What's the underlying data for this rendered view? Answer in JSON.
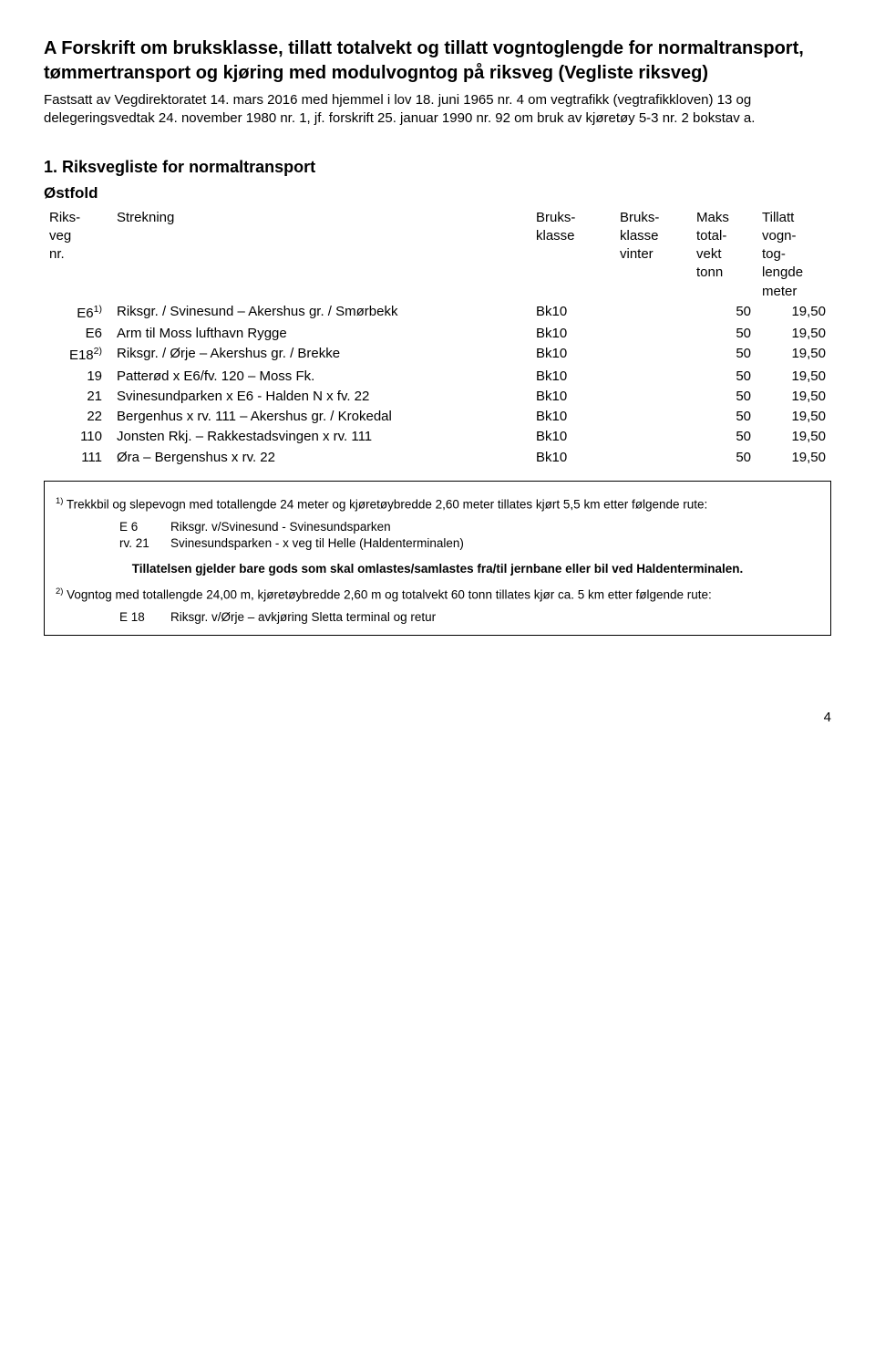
{
  "doc": {
    "title": "A    Forskrift om bruksklasse, tillatt totalvekt og tillatt vogntoglengde for normaltransport, tømmertransport og kjøring med modulvogntog på riksveg (Vegliste riksveg)",
    "subtitle": "Fastsatt av Vegdirektoratet 14. mars 2016 med hjemmel i lov 18. juni 1965 nr. 4 om vegtrafikk (vegtrafikkloven) 13 og delegeringsvedtak 24. november 1980 nr. 1, jf. forskrift 25. januar 1990 nr. 92 om bruk av kjøretøy 5-3 nr. 2 bokstav a.",
    "section_heading": "1.    Riksvegliste for normaltransport",
    "region": "Østfold",
    "page_number": "4"
  },
  "table": {
    "headers": {
      "col_nr": "Riks-\nveg\nnr.",
      "col_strek": "Strekning",
      "col_bk": "Bruks-\nklasse",
      "col_bkv": "Bruks-\nklasse\nvinter",
      "col_maks": "Maks\ntotal-\nvekt\ntonn",
      "col_till": "Tillatt\nvogn-\ntog-\nlengde\nmeter"
    },
    "rows": [
      {
        "nr": "E6",
        "sup": "1)",
        "strek": "Riksgr. / Svinesund – Akershus gr. / Smørbekk",
        "bk": "Bk10",
        "bkv": "",
        "maks": "50",
        "till": "19,50"
      },
      {
        "nr": "E6",
        "sup": "",
        "strek": "Arm til Moss lufthavn Rygge",
        "bk": "Bk10",
        "bkv": "",
        "maks": "50",
        "till": "19,50"
      },
      {
        "nr": "E18",
        "sup": "2)",
        "strek": "Riksgr. / Ørje – Akershus gr. / Brekke",
        "bk": "Bk10",
        "bkv": "",
        "maks": "50",
        "till": "19,50"
      },
      {
        "nr": "19",
        "sup": "",
        "strek": "Patterød x E6/fv. 120 – Moss Fk.",
        "bk": "Bk10",
        "bkv": "",
        "maks": "50",
        "till": "19,50"
      },
      {
        "nr": "21",
        "sup": "",
        "strek": "Svinesundparken x E6 - Halden N x fv. 22",
        "bk": "Bk10",
        "bkv": "",
        "maks": "50",
        "till": "19,50"
      },
      {
        "nr": "22",
        "sup": "",
        "strek": "Bergenhus x rv. 111 – Akershus gr. / Krokedal",
        "bk": "Bk10",
        "bkv": "",
        "maks": "50",
        "till": "19,50"
      },
      {
        "nr": "110",
        "sup": "",
        "strek": "Jonsten Rkj. – Rakkestadsvingen x rv. 111",
        "bk": "Bk10",
        "bkv": "",
        "maks": "50",
        "till": "19,50"
      },
      {
        "nr": "111",
        "sup": "",
        "strek": "Øra – Bergenshus x rv. 22",
        "bk": "Bk10",
        "bkv": "",
        "maks": "50",
        "till": "19,50"
      }
    ]
  },
  "footnotes": {
    "fn1_intro": "   Trekkbil og slepevogn med totallengde 24 meter og kjøretøybredde 2,60 meter tillates kjørt 5,5 km etter følgende rute:",
    "fn1_sup": "1)",
    "fn1_routes": [
      {
        "key": "E 6",
        "val": "Riksgr. v/Svinesund - Svinesundsparken"
      },
      {
        "key": "rv. 21",
        "val": "Svinesundsparken - x veg til Helle (Haldenterminalen)"
      }
    ],
    "fn1_bold": "Tillatelsen gjelder bare gods som skal omlastes/samlastes  fra/til jernbane eller bil ved Haldenterminalen.",
    "fn2_intro": "   Vogntog med totallengde 24,00 m, kjøretøybredde 2,60 m og totalvekt 60 tonn tillates kjør ca. 5 km etter følgende rute:",
    "fn2_sup": "2)",
    "fn2_routes": [
      {
        "key": "E 18",
        "val": "Riksgr. v/Ørje – avkjøring Sletta terminal og retur"
      }
    ]
  }
}
